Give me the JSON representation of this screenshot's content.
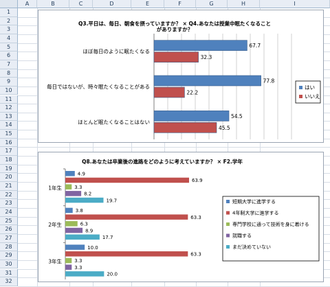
{
  "spreadsheet": {
    "columns": [
      "A",
      "B",
      "C",
      "D",
      "E",
      "F",
      "G",
      "H",
      "I"
    ],
    "rows": [
      "1",
      "2",
      "3",
      "4",
      "5",
      "6",
      "7",
      "8",
      "9",
      "10",
      "11",
      "12",
      "13",
      "14",
      "15",
      "16",
      "17",
      "18",
      "19",
      "20",
      "21",
      "22",
      "23",
      "24",
      "25",
      "26",
      "27",
      "28",
      "29",
      "30",
      "31",
      "32"
    ]
  },
  "chart_data": [
    {
      "type": "bar",
      "orientation": "horizontal",
      "title": "Q3.平日は、毎日、朝食を摂っていますか？ × Q4.あなたは授業中眠たくなることがありますか？",
      "categories": [
        "ほぼ毎日のように眠たくなる",
        "毎日ではないが、時々眠たくなることがある",
        "ほとんど眠たくなることはない"
      ],
      "series": [
        {
          "name": "はい",
          "values": [
            67.7,
            77.8,
            54.5
          ],
          "color": "#4f81bd"
        },
        {
          "name": "いいえ",
          "values": [
            32.3,
            22.2,
            45.5
          ],
          "color": "#c0504d"
        }
      ],
      "xlim": [
        0,
        100
      ],
      "grid": true,
      "legend": "right",
      "data_labels": true
    },
    {
      "type": "bar",
      "orientation": "horizontal",
      "title": "Q8.あなたは卒業後の進路をどのように考えていますか？ × F2.学年",
      "categories": [
        "1年生",
        "2年生",
        "3年生"
      ],
      "series": [
        {
          "name": "短期大学に進学する",
          "values": [
            4.9,
            3.8,
            10.0
          ],
          "color": "#4f81bd"
        },
        {
          "name": "4年制大学に進学する",
          "values": [
            63.9,
            63.3,
            63.3
          ],
          "color": "#c0504d"
        },
        {
          "name": "専門学校に通って技術を身に着ける",
          "values": [
            3.3,
            6.3,
            3.3
          ],
          "color": "#9bbb59"
        },
        {
          "name": "就職する",
          "values": [
            8.2,
            8.9,
            3.3
          ],
          "color": "#8064a2"
        },
        {
          "name": "まだ決めていない",
          "values": [
            19.7,
            17.7,
            20.0
          ],
          "color": "#4bacc6"
        }
      ],
      "xlim": [
        0,
        70
      ],
      "grid": false,
      "legend": "right",
      "data_labels": true
    }
  ]
}
